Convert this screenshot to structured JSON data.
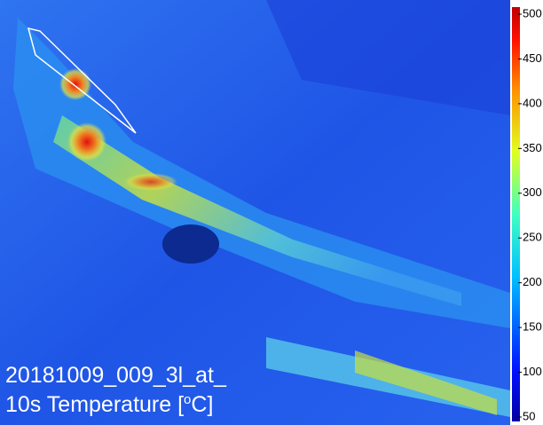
{
  "image": {
    "caption": [
      "20181009_009_3l_at_",
      {
        "text": "10s Temperature [",
        "superscript": "o",
        "suffix": "C]"
      }
    ]
  },
  "colorbar": {
    "range": [
      50,
      500
    ],
    "ticks": [
      500,
      450,
      400,
      350,
      300,
      250,
      200,
      150,
      100,
      50
    ]
  }
}
